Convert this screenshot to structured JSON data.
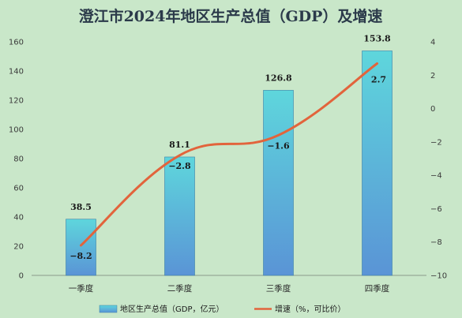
{
  "chart_data": {
    "type": "bar",
    "title": "澄江市2024年地区生产总值（GDP）及增速",
    "categories": [
      "一季度",
      "二季度",
      "三季度",
      "四季度"
    ],
    "series": [
      {
        "name": "地区生产总值（GDP，亿元）",
        "type": "bar",
        "axis": "left",
        "values": [
          38.5,
          81.1,
          126.8,
          153.8
        ],
        "labels": [
          "38.5",
          "81.1",
          "126.8",
          "153.8"
        ]
      },
      {
        "name": "增速（%，可比价）",
        "type": "line",
        "axis": "right",
        "values": [
          -8.2,
          -2.8,
          -1.6,
          2.7
        ],
        "labels": [
          "−8.2",
          "−2.8",
          "−1.6",
          "2.7"
        ]
      }
    ],
    "y_left": {
      "min": 0,
      "max": 160,
      "step": 20
    },
    "y_right": {
      "min": -10,
      "max": 4,
      "step": 2
    },
    "legend": "bottom",
    "colors": {
      "bar_top": "#5ed6dc",
      "bar_bottom": "#5a94d6",
      "line": "#e2643c",
      "background": "#c9e7c9"
    }
  }
}
